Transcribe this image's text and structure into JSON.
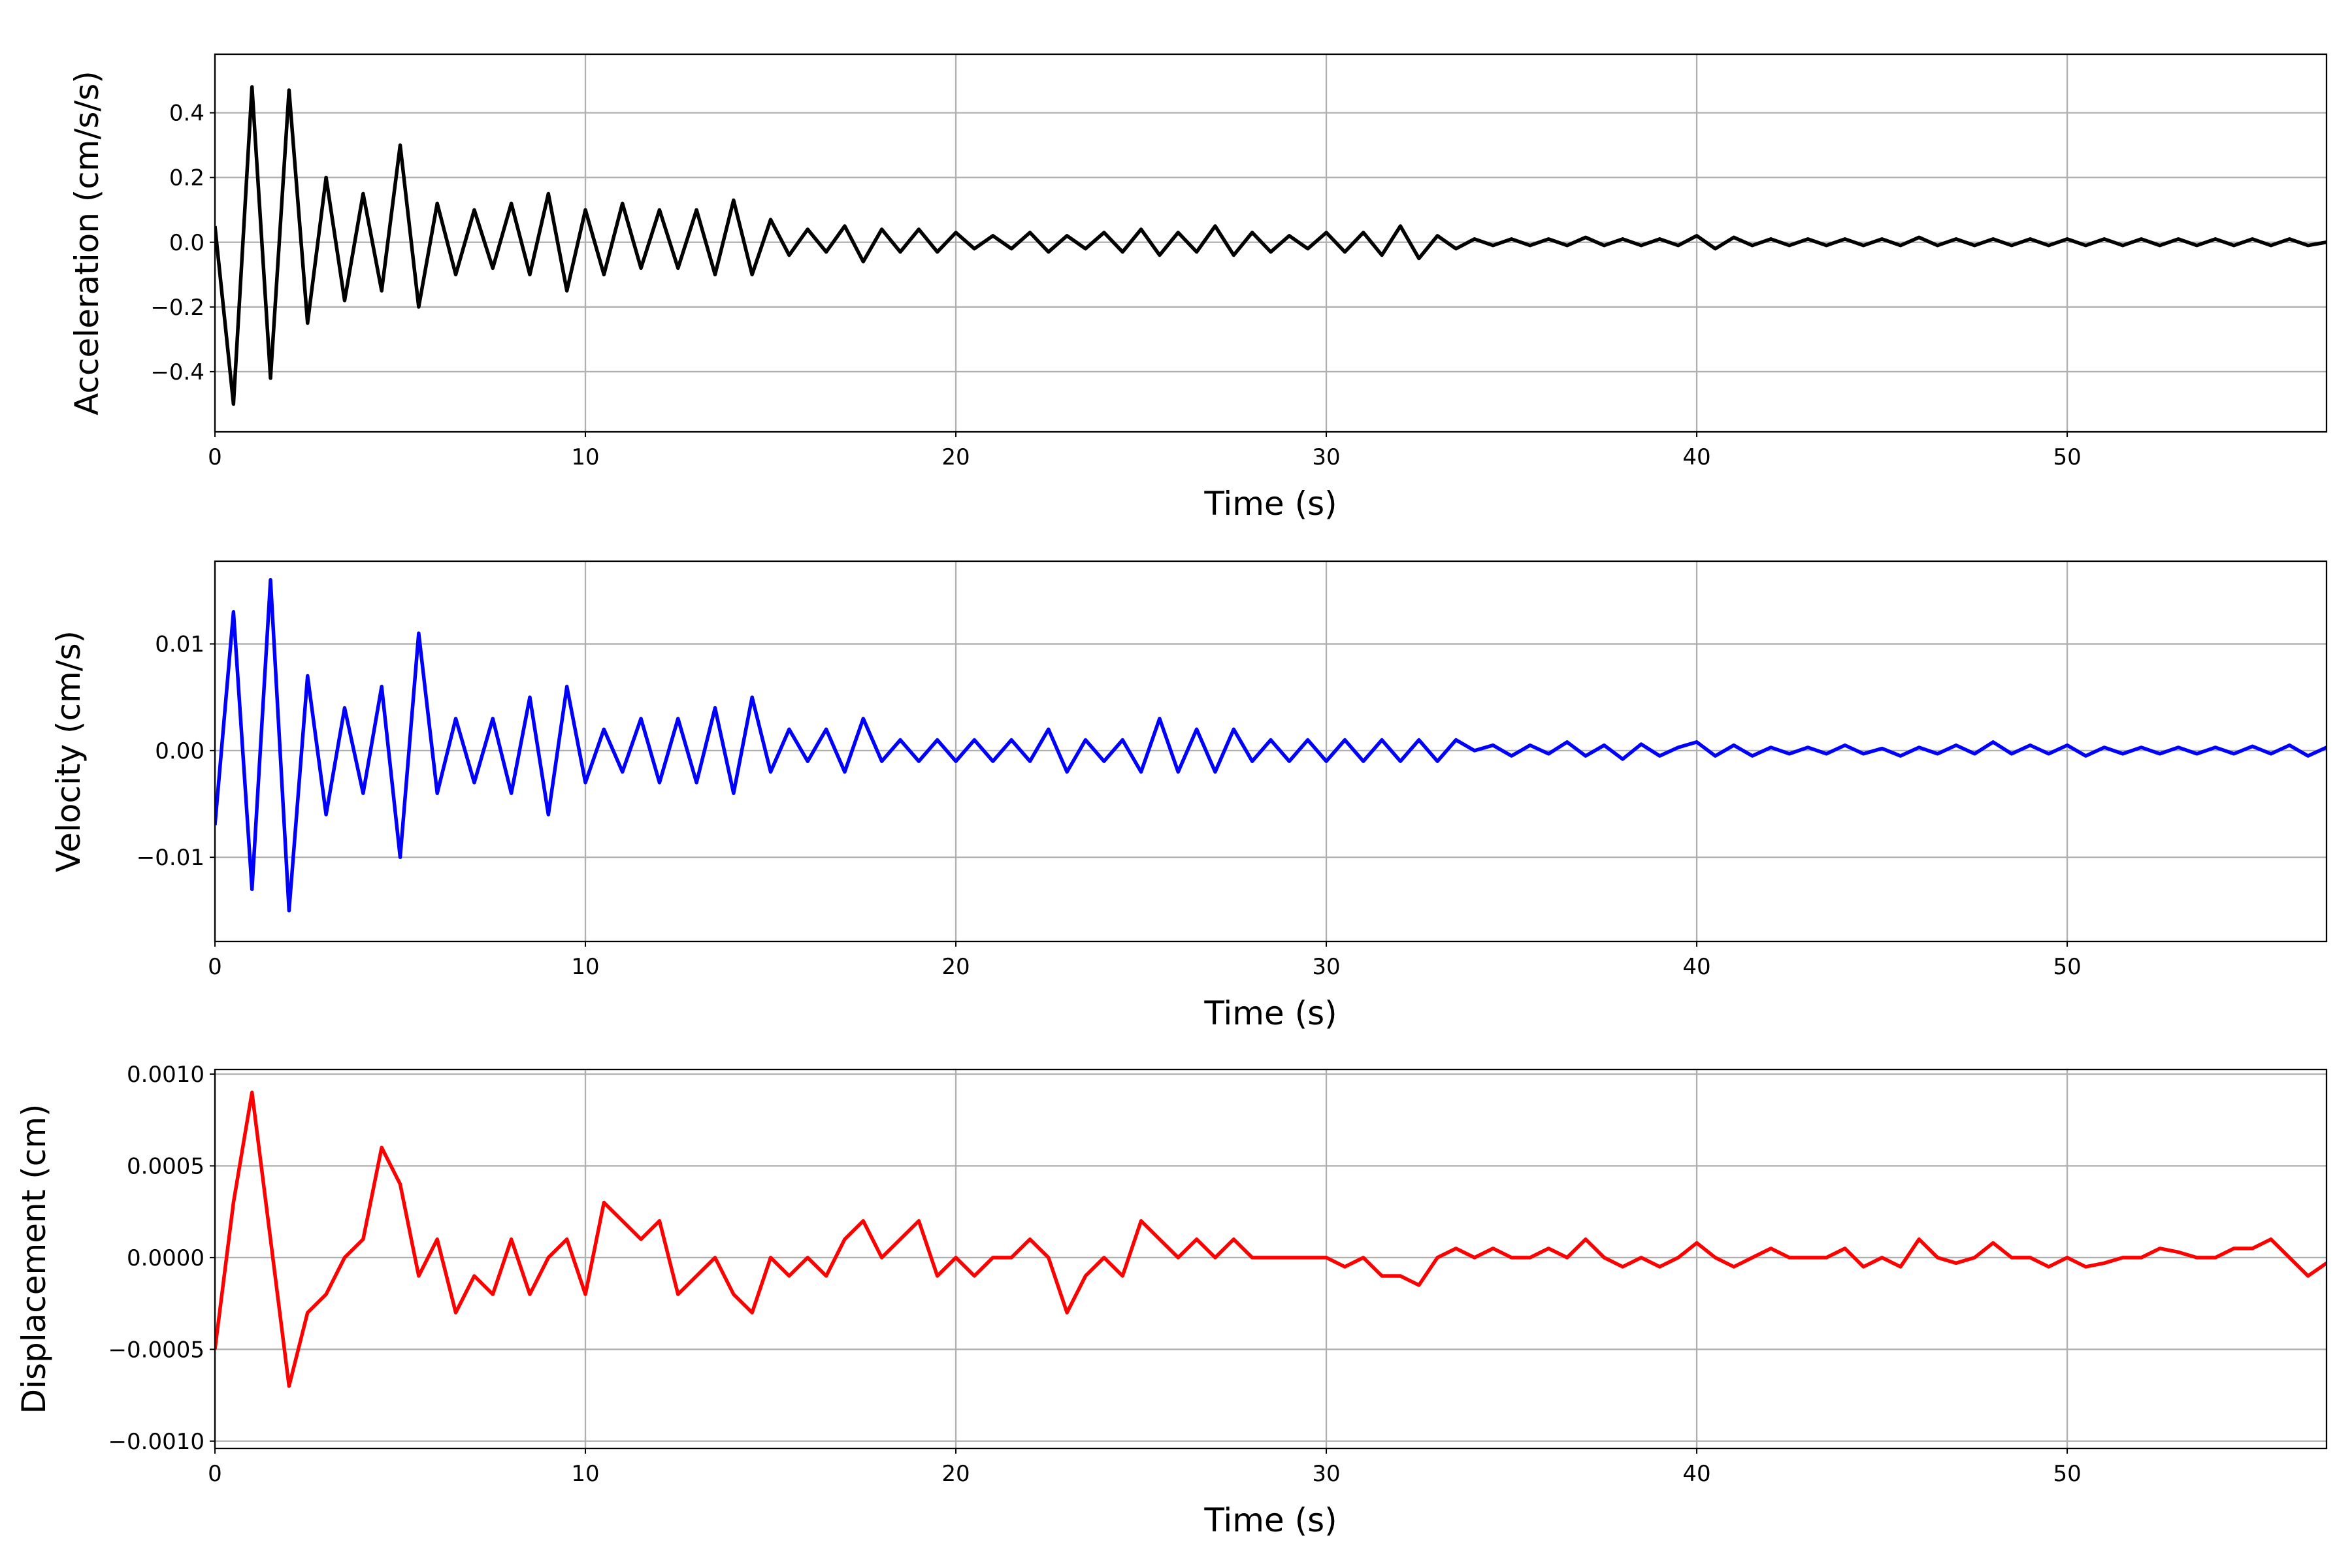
{
  "chart_data": [
    {
      "type": "line",
      "ylabel": "Acceleration (cm/s/s)",
      "xlabel": "Time (s)",
      "color": "#000000",
      "grid": true,
      "xlim": [
        0,
        57
      ],
      "xticks": [
        0,
        10,
        20,
        30,
        40,
        50
      ],
      "ylim": [
        -0.586,
        0.581
      ],
      "yticks": [
        {
          "value": -0.4,
          "label": "−0.4"
        },
        {
          "value": -0.2,
          "label": "−0.2"
        },
        {
          "value": 0,
          "label": "0.0"
        },
        {
          "value": 0.2,
          "label": "0.2"
        },
        {
          "value": 0.4,
          "label": "0.4"
        }
      ],
      "x": [
        0,
        0.5,
        1,
        1.5,
        2,
        2.5,
        3,
        3.5,
        4,
        4.5,
        5,
        5.5,
        6,
        6.5,
        7,
        7.5,
        8,
        8.5,
        9,
        9.5,
        10,
        10.5,
        11,
        11.5,
        12,
        12.5,
        13,
        13.5,
        14,
        14.5,
        15,
        15.5,
        16,
        16.5,
        17,
        17.5,
        18,
        18.5,
        19,
        19.5,
        20,
        20.5,
        21,
        21.5,
        22,
        22.5,
        23,
        23.5,
        24,
        24.5,
        25,
        25.5,
        26,
        26.5,
        27,
        27.5,
        28,
        28.5,
        29,
        29.5,
        30,
        30.5,
        31,
        31.5,
        32,
        32.5,
        33,
        33.5,
        34,
        34.5,
        35,
        35.5,
        36,
        36.5,
        37,
        37.5,
        38,
        38.5,
        39,
        39.5,
        40,
        40.5,
        41,
        41.5,
        42,
        42.5,
        43,
        43.5,
        44,
        44.5,
        45,
        45.5,
        46,
        46.5,
        47,
        47.5,
        48,
        48.5,
        49,
        49.5,
        50,
        50.5,
        51,
        51.5,
        52,
        52.5,
        53,
        53.5,
        54,
        54.5,
        55,
        55.5,
        56,
        56.5,
        57
      ],
      "values": [
        0.05,
        -0.5,
        0.48,
        -0.42,
        0.47,
        -0.25,
        0.2,
        -0.18,
        0.15,
        -0.15,
        0.3,
        -0.2,
        0.12,
        -0.1,
        0.1,
        -0.08,
        0.12,
        -0.1,
        0.15,
        -0.15,
        0.1,
        -0.1,
        0.12,
        -0.08,
        0.1,
        -0.08,
        0.1,
        -0.1,
        0.13,
        -0.1,
        0.07,
        -0.04,
        0.04,
        -0.03,
        0.05,
        -0.06,
        0.04,
        -0.03,
        0.04,
        -0.03,
        0.03,
        -0.02,
        0.02,
        -0.02,
        0.03,
        -0.03,
        0.02,
        -0.02,
        0.03,
        -0.03,
        0.04,
        -0.04,
        0.03,
        -0.03,
        0.05,
        -0.04,
        0.03,
        -0.03,
        0.02,
        -0.02,
        0.03,
        -0.03,
        0.03,
        -0.04,
        0.05,
        -0.05,
        0.02,
        -0.02,
        0.01,
        -0.01,
        0.01,
        -0.01,
        0.01,
        -0.01,
        0.015,
        -0.01,
        0.01,
        -0.01,
        0.01,
        -0.01,
        0.02,
        -0.02,
        0.015,
        -0.01,
        0.01,
        -0.01,
        0.01,
        -0.01,
        0.01,
        -0.01,
        0.01,
        -0.01,
        0.015,
        -0.01,
        0.01,
        -0.01,
        0.01,
        -0.01,
        0.01,
        -0.01,
        0.01,
        -0.01,
        0.01,
        -0.01,
        0.01,
        -0.01,
        0.01,
        -0.01,
        0.01,
        -0.01,
        0.01,
        -0.01,
        0.01,
        -0.01,
        0.0
      ]
    },
    {
      "type": "line",
      "ylabel": "Velocity (cm/s)",
      "xlabel": "Time (s)",
      "color": "#0000ff",
      "grid": true,
      "xlim": [
        0,
        57
      ],
      "xticks": [
        0,
        10,
        20,
        30,
        40,
        50
      ],
      "ylim": [
        -0.01789,
        0.01775
      ],
      "yticks": [
        {
          "value": -0.01,
          "label": "−0.01"
        },
        {
          "value": 0,
          "label": "0.00"
        },
        {
          "value": 0.01,
          "label": "0.01"
        }
      ],
      "x": [
        0,
        0.5,
        1,
        1.5,
        2,
        2.5,
        3,
        3.5,
        4,
        4.5,
        5,
        5.5,
        6,
        6.5,
        7,
        7.5,
        8,
        8.5,
        9,
        9.5,
        10,
        10.5,
        11,
        11.5,
        12,
        12.5,
        13,
        13.5,
        14,
        14.5,
        15,
        15.5,
        16,
        16.5,
        17,
        17.5,
        18,
        18.5,
        19,
        19.5,
        20,
        20.5,
        21,
        21.5,
        22,
        22.5,
        23,
        23.5,
        24,
        24.5,
        25,
        25.5,
        26,
        26.5,
        27,
        27.5,
        28,
        28.5,
        29,
        29.5,
        30,
        30.5,
        31,
        31.5,
        32,
        32.5,
        33,
        33.5,
        34,
        34.5,
        35,
        35.5,
        36,
        36.5,
        37,
        37.5,
        38,
        38.5,
        39,
        39.5,
        40,
        40.5,
        41,
        41.5,
        42,
        42.5,
        43,
        43.5,
        44,
        44.5,
        45,
        45.5,
        46,
        46.5,
        47,
        47.5,
        48,
        48.5,
        49,
        49.5,
        50,
        50.5,
        51,
        51.5,
        52,
        52.5,
        53,
        53.5,
        54,
        54.5,
        55,
        55.5,
        56,
        56.5,
        57
      ],
      "values": [
        -0.007,
        0.013,
        -0.013,
        0.016,
        -0.015,
        0.007,
        -0.006,
        0.004,
        -0.004,
        0.006,
        -0.01,
        0.011,
        -0.004,
        0.003,
        -0.003,
        0.003,
        -0.004,
        0.005,
        -0.006,
        0.006,
        -0.003,
        0.002,
        -0.002,
        0.003,
        -0.003,
        0.003,
        -0.003,
        0.004,
        -0.004,
        0.005,
        -0.002,
        0.002,
        -0.001,
        0.002,
        -0.002,
        0.003,
        -0.001,
        0.001,
        -0.001,
        0.001,
        -0.001,
        0.001,
        -0.001,
        0.001,
        -0.001,
        0.002,
        -0.002,
        0.001,
        -0.001,
        0.001,
        -0.002,
        0.003,
        -0.002,
        0.002,
        -0.002,
        0.002,
        -0.001,
        0.001,
        -0.001,
        0.001,
        -0.001,
        0.001,
        -0.001,
        0.001,
        -0.001,
        0.001,
        -0.001,
        0.001,
        0,
        0.0005,
        -0.0005,
        0.0005,
        -0.0003,
        0.0008,
        -0.0005,
        0.0005,
        -0.0008,
        0.0006,
        -0.0005,
        0.0003,
        0.0008,
        -0.0005,
        0.0005,
        -0.0005,
        0.0003,
        -0.0003,
        0.0003,
        -0.0003,
        0.0005,
        -0.0003,
        0.0002,
        -0.0005,
        0.0003,
        -0.0003,
        0.0005,
        -0.0003,
        0.0008,
        -0.0003,
        0.0005,
        -0.0003,
        0.0005,
        -0.0005,
        0.0003,
        -0.0003,
        0.0003,
        -0.0003,
        0.0003,
        -0.0003,
        0.0003,
        -0.0003,
        0.0004,
        -0.0003,
        0.0005,
        -0.0005,
        0.0003
      ]
    },
    {
      "type": "line",
      "ylabel": "Displacement (cm)",
      "xlabel": "Time (s)",
      "color": "#ff0000",
      "grid": true,
      "xlim": [
        0,
        57
      ],
      "xticks": [
        0,
        10,
        20,
        30,
        40,
        50
      ],
      "ylim": [
        -0.00104,
        0.001025
      ],
      "yticks": [
        {
          "value": -0.001,
          "label": "−0.0010"
        },
        {
          "value": -0.0005,
          "label": "−0.0005"
        },
        {
          "value": 0,
          "label": "0.0000"
        },
        {
          "value": 0.0005,
          "label": "0.0005"
        },
        {
          "value": 0.001,
          "label": "0.0010"
        }
      ],
      "x": [
        0,
        0.5,
        1,
        1.5,
        2,
        2.5,
        3,
        3.5,
        4,
        4.5,
        5,
        5.5,
        6,
        6.5,
        7,
        7.5,
        8,
        8.5,
        9,
        9.5,
        10,
        10.5,
        11,
        11.5,
        12,
        12.5,
        13,
        13.5,
        14,
        14.5,
        15,
        15.5,
        16,
        16.5,
        17,
        17.5,
        18,
        18.5,
        19,
        19.5,
        20,
        20.5,
        21,
        21.5,
        22,
        22.5,
        23,
        23.5,
        24,
        24.5,
        25,
        25.5,
        26,
        26.5,
        27,
        27.5,
        28,
        28.5,
        29,
        29.5,
        30,
        30.5,
        31,
        31.5,
        32,
        32.5,
        33,
        33.5,
        34,
        34.5,
        35,
        35.5,
        36,
        36.5,
        37,
        37.5,
        38,
        38.5,
        39,
        39.5,
        40,
        40.5,
        41,
        41.5,
        42,
        42.5,
        43,
        43.5,
        44,
        44.5,
        45,
        45.5,
        46,
        46.5,
        47,
        47.5,
        48,
        48.5,
        49,
        49.5,
        50,
        50.5,
        51,
        51.5,
        52,
        52.5,
        53,
        53.5,
        54,
        54.5,
        55,
        55.5,
        56,
        56.5,
        57
      ],
      "values": [
        -0.0005,
        0.0003,
        0.0009,
        0.0001,
        -0.0007,
        -0.0003,
        -0.0002,
        0.0,
        0.0001,
        0.0006,
        0.0004,
        -0.0001,
        0.0001,
        -0.0003,
        -0.0001,
        -0.0002,
        0.0001,
        -0.0002,
        0.0,
        0.0001,
        -0.0002,
        0.0003,
        0.0002,
        0.0001,
        0.0002,
        -0.0002,
        -0.0001,
        0.0,
        -0.0002,
        -0.0003,
        0.0,
        -0.0001,
        0.0,
        -0.0001,
        0.0001,
        0.0002,
        0.0,
        0.0001,
        0.0002,
        -0.0001,
        0.0,
        -0.0001,
        0.0,
        0.0,
        0.0001,
        0.0,
        -0.0003,
        -0.0001,
        0.0,
        -0.0001,
        0.0002,
        0.0001,
        0.0,
        0.0001,
        0.0,
        0.0001,
        0.0,
        0.0,
        0.0,
        0.0,
        0.0,
        -5e-05,
        0.0,
        -0.0001,
        -0.0001,
        -0.00015,
        0.0,
        5e-05,
        0.0,
        5e-05,
        0.0,
        0.0,
        5e-05,
        0.0,
        0.0001,
        0.0,
        -5e-05,
        0.0,
        -5e-05,
        0.0,
        8e-05,
        0.0,
        -5e-05,
        0.0,
        5e-05,
        0.0,
        0.0,
        0.0,
        5e-05,
        -5e-05,
        0.0,
        -5e-05,
        0.0001,
        0.0,
        -3e-05,
        0.0,
        8e-05,
        0.0,
        0.0,
        -5e-05,
        0.0,
        -5e-05,
        -3e-05,
        0.0,
        0.0,
        5e-05,
        3e-05,
        0.0,
        0.0,
        5e-05,
        5e-05,
        0.0001,
        0.0,
        -0.0001,
        -3e-05
      ]
    }
  ]
}
